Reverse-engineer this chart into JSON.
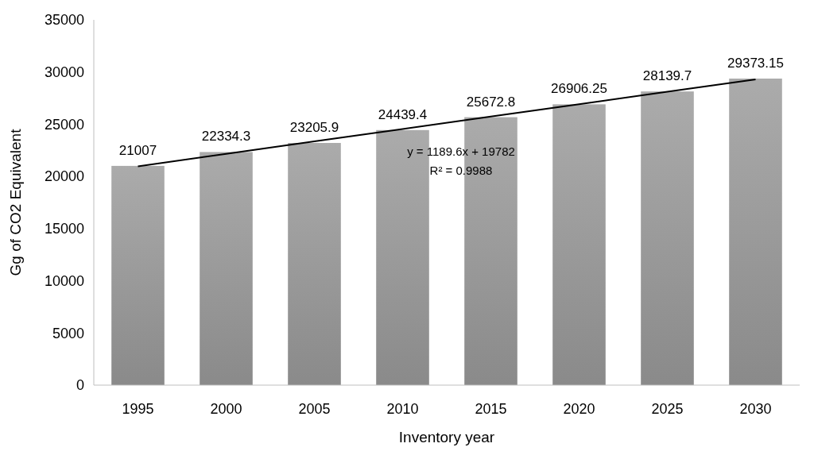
{
  "chart_data": {
    "type": "bar",
    "xlabel": "Inventory year",
    "ylabel": "Gg of CO2 Equivalent",
    "categories": [
      "1995",
      "2000",
      "2005",
      "2010",
      "2015",
      "2020",
      "2025",
      "2030"
    ],
    "series": [
      {
        "color": "#9a9a9a",
        "values": [
          21007,
          22334.3,
          23205.9,
          24439.4,
          25672.8,
          26906.25,
          28139.7,
          29373.15
        ],
        "value_labels": [
          "21007",
          "22334.3",
          "23205.9",
          "24439.4",
          "25672.8",
          "26906.25",
          "28139.7",
          "29373.15"
        ]
      },
      {
        "type": "line",
        "color": "#000000",
        "values": [
          20970,
          22160,
          23350,
          24540,
          25730,
          26920,
          28110,
          29300
        ]
      }
    ],
    "ylim": [
      0,
      35000
    ],
    "yticks": [
      0,
      5000,
      10000,
      15000,
      20000,
      25000,
      30000,
      35000
    ],
    "annotations": [
      "y = 1189.6x + 19782",
      "R² = 0.9988"
    ],
    "grid": false
  }
}
